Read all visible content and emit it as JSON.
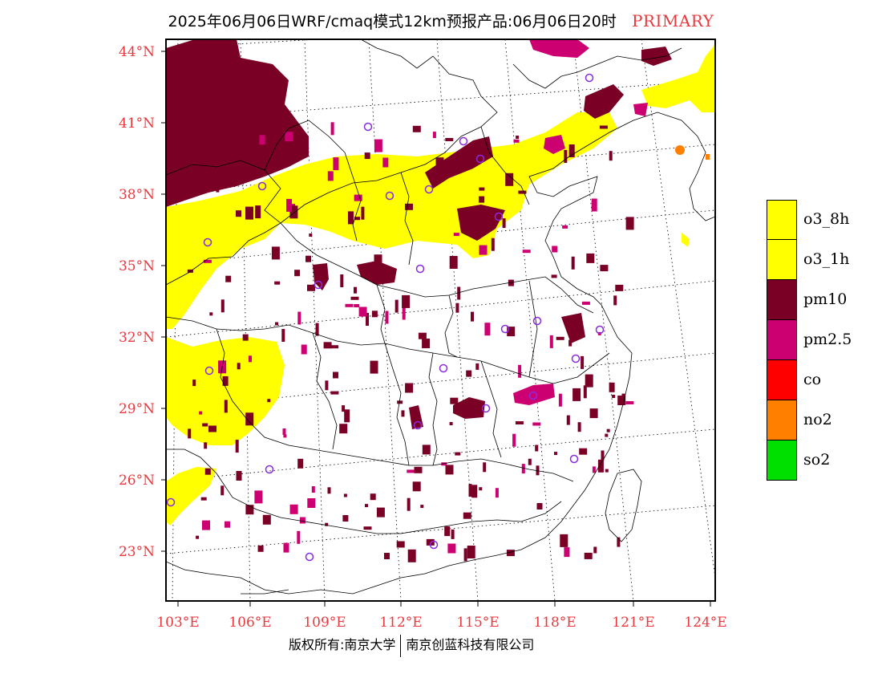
{
  "header": {
    "title": "2025年06月06日WRF/cmaq模式12km预报产品:06月06日20时",
    "tag": "PRIMARY"
  },
  "map": {
    "lat_labels": [
      "44°N",
      "41°N",
      "38°N",
      "35°N",
      "32°N",
      "29°N",
      "26°N",
      "23°N"
    ],
    "lon_labels": [
      "103°E",
      "106°E",
      "109°E",
      "112°E",
      "115°E",
      "118°E",
      "121°E",
      "124°E"
    ],
    "colors": {
      "o3": "#ffff00",
      "pm10": "#7a0026",
      "pm25": "#cc0070",
      "no2": "#ff7f00",
      "co": "#ff0000",
      "so2": "#00e000",
      "station_marker": "#8a2be2",
      "label": "#e8383d"
    }
  },
  "legend": {
    "items": [
      {
        "label": "o3_8h",
        "color": "#ffff00"
      },
      {
        "label": "o3_1h",
        "color": "#ffff00"
      },
      {
        "label": "pm10",
        "color": "#7a0026"
      },
      {
        "label": "pm2.5",
        "color": "#cc0070"
      },
      {
        "label": "co",
        "color": "#ff0000"
      },
      {
        "label": "no2",
        "color": "#ff7f00"
      },
      {
        "label": "so2",
        "color": "#00e000"
      }
    ]
  },
  "footer": {
    "copyright_left": "版权所有:南京大学",
    "copyright_right": "南京创蓝科技有限公司"
  }
}
